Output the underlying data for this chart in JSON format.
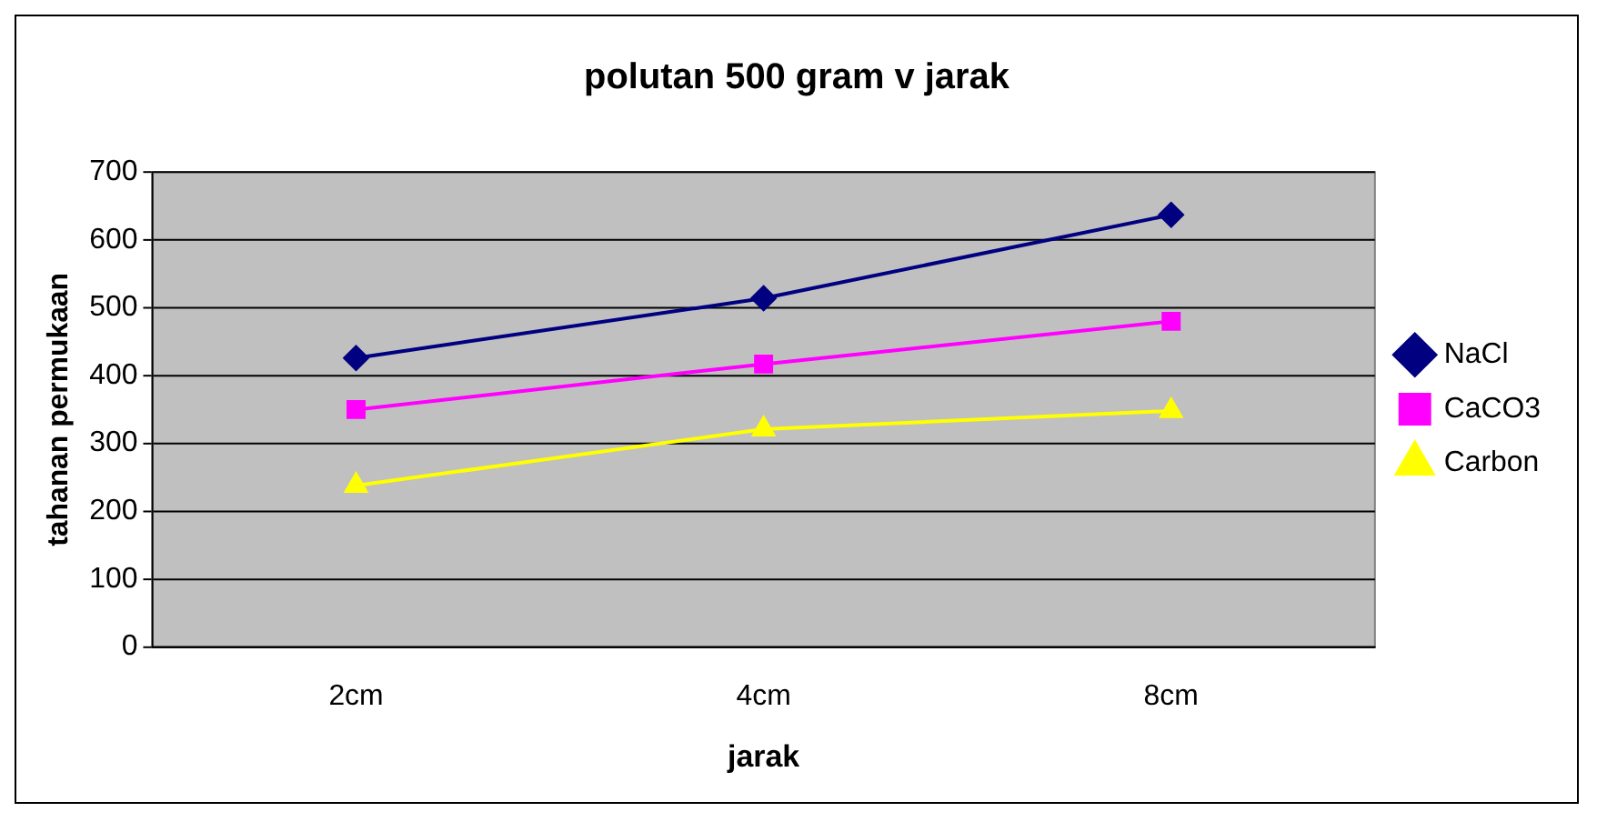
{
  "chart_data": {
    "type": "line",
    "title": "polutan 500 gram v jarak",
    "xlabel": "jarak",
    "ylabel": "tahanan permukaan",
    "categories": [
      "2cm",
      "4cm",
      "8cm"
    ],
    "series": [
      {
        "name": "NaCl",
        "color": "#000080",
        "values": [
          426,
          514,
          637
        ],
        "marker": "diamond"
      },
      {
        "name": "CaCO3",
        "color": "#ff00ff",
        "values": [
          350,
          417,
          480
        ],
        "marker": "square"
      },
      {
        "name": "Carbon",
        "color": "#ffff00",
        "values": [
          238,
          321,
          348
        ],
        "marker": "triangle"
      }
    ],
    "ylim": [
      0,
      700
    ],
    "yticks": [
      0,
      100,
      200,
      300,
      400,
      500,
      600,
      700
    ],
    "grid": "y",
    "legend": "right"
  }
}
